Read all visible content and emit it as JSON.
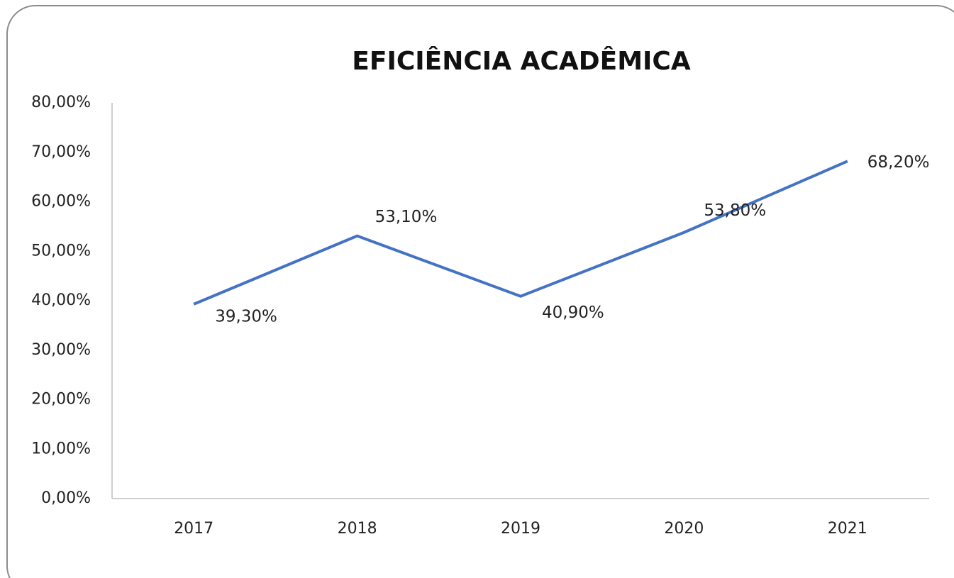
{
  "chart_data": {
    "type": "line",
    "title": "EFICIÊNCIA ACADÊMICA",
    "categories": [
      "2017",
      "2018",
      "2019",
      "2020",
      "2021"
    ],
    "series": [
      {
        "name": "Eficiência Acadêmica",
        "color": "#4472c4",
        "values": [
          39.3,
          53.1,
          40.9,
          53.8,
          68.2
        ],
        "value_labels": [
          "39,30%",
          "53,10%",
          "40,90%",
          "53,80%",
          "68,20%"
        ]
      }
    ],
    "ylim": [
      0,
      80
    ],
    "yticks": [
      {
        "value": 0,
        "label": "0,00%"
      },
      {
        "value": 10,
        "label": "10,00%"
      },
      {
        "value": 20,
        "label": "20,00%"
      },
      {
        "value": 30,
        "label": "30,00%"
      },
      {
        "value": 40,
        "label": "40,00%"
      },
      {
        "value": 50,
        "label": "50,00%"
      },
      {
        "value": 60,
        "label": "60,00%"
      },
      {
        "value": 70,
        "label": "70,00%"
      },
      {
        "value": 80,
        "label": "80,00%"
      }
    ],
    "grid": false
  }
}
